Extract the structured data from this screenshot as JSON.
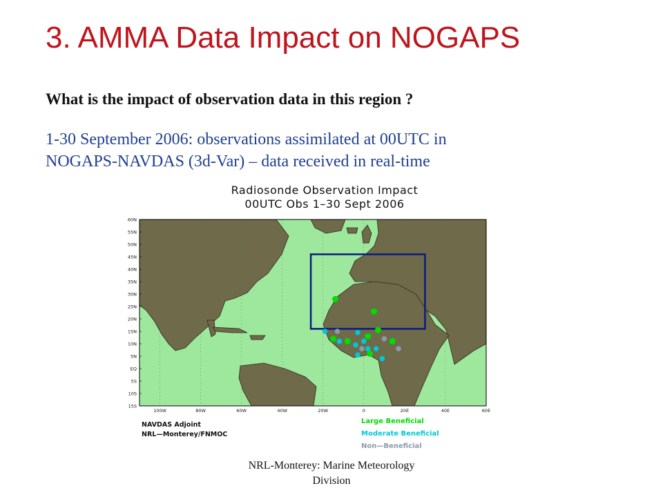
{
  "slide": {
    "title": "3. AMMA Data Impact on NOGAPS",
    "question": "What is the impact of observation data in this region ?",
    "description_line1": "1-30 September 2006: observations assimilated at 00UTC in",
    "description_line2": "NOGAPS-NAVDAS (3d-Var) – data received in real-time",
    "footer_line1": "NRL-Monterey: Marine Meteorology",
    "footer_line2": "Division"
  },
  "map": {
    "title_line1": "Radiosonde Observation Impact",
    "title_line2": "00UTC Obs 1–30 Sept 2006",
    "lat_labels": [
      "60N",
      "55N",
      "50N",
      "45N",
      "40N",
      "35N",
      "30N",
      "25N",
      "20N",
      "15N",
      "10N",
      "5N",
      "EQ",
      "5S",
      "10S",
      "15S"
    ],
    "lon_labels": [
      "100W",
      "80W",
      "60W",
      "40W",
      "20W",
      "0",
      "20E",
      "40E",
      "60E"
    ],
    "credit_line1": "NAVDAS Adjoint",
    "credit_line2": "NRL—Monterey/FNMOC",
    "colors": {
      "ocean": "#9ee89e",
      "land": "#6e6a4a",
      "large": "#00dd00",
      "moderate": "#00c8d6",
      "non": "#8c9aa8",
      "box": "#0b1a80"
    },
    "legend": [
      {
        "label": "Large Beneficial",
        "color": "#00dd00"
      },
      {
        "label": "Moderate Beneficial",
        "color": "#00c8d6"
      },
      {
        "label": "Non—Beneficial",
        "color": "#8c9aa8"
      }
    ],
    "stations": [
      {
        "lon": -14,
        "lat": 28,
        "cat": "large"
      },
      {
        "lon": 5,
        "lat": 23,
        "cat": "large"
      },
      {
        "lon": -19,
        "lat": 15,
        "cat": "moderate"
      },
      {
        "lon": -13,
        "lat": 15,
        "cat": "non"
      },
      {
        "lon": -15,
        "lat": 12,
        "cat": "large"
      },
      {
        "lon": -12,
        "lat": 11,
        "cat": "moderate"
      },
      {
        "lon": -8,
        "lat": 11,
        "cat": "large"
      },
      {
        "lon": -3,
        "lat": 14.5,
        "cat": "moderate"
      },
      {
        "lon": 0,
        "lat": 11,
        "cat": "moderate"
      },
      {
        "lon": 2,
        "lat": 13,
        "cat": "large"
      },
      {
        "lon": 7,
        "lat": 15.5,
        "cat": "large"
      },
      {
        "lon": -4,
        "lat": 9.5,
        "cat": "moderate"
      },
      {
        "lon": -1,
        "lat": 8,
        "cat": "non"
      },
      {
        "lon": 2,
        "lat": 8,
        "cat": "moderate"
      },
      {
        "lon": 6,
        "lat": 8,
        "cat": "moderate"
      },
      {
        "lon": 3,
        "lat": 6,
        "cat": "large"
      },
      {
        "lon": -3,
        "lat": 5.5,
        "cat": "moderate"
      },
      {
        "lon": 9,
        "lat": 4,
        "cat": "moderate"
      },
      {
        "lon": 14,
        "lat": 11,
        "cat": "large"
      },
      {
        "lon": 17,
        "lat": 8,
        "cat": "non"
      },
      {
        "lon": 10,
        "lat": 12,
        "cat": "non"
      }
    ],
    "region_box": {
      "lon_min": -26,
      "lon_max": 30,
      "lat_min": 16,
      "lat_max": 46
    }
  }
}
